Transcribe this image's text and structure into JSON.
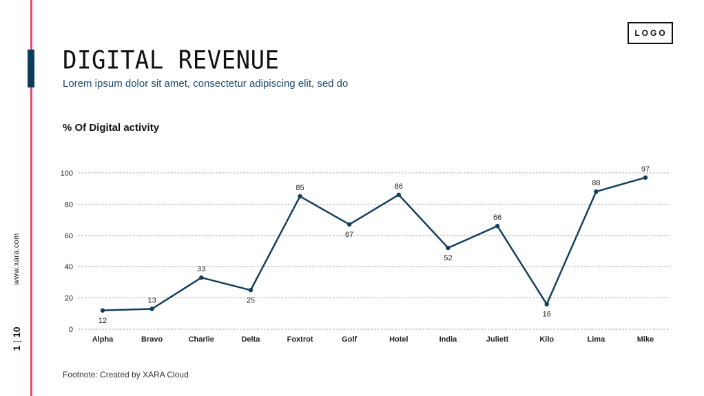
{
  "page": {
    "title": "DIGITAL REVENUE",
    "subtitle": "Lorem ipsum dolor sit amet, consectetur adipiscing elit, sed do",
    "logo": "LOGO",
    "side_url": "www.xara.com",
    "page_current": "1",
    "page_separator": "|",
    "page_total": "10",
    "footnote": "Footnote: Created by XARA Cloud"
  },
  "colors": {
    "accent": "#e8466e",
    "brand": "#0d3b5a",
    "line": "#123f5e",
    "grid": "#999999"
  },
  "chart_data": {
    "type": "line",
    "title": "% Of Digital activity",
    "xlabel": "",
    "ylabel": "",
    "categories": [
      "Alpha",
      "Bravo",
      "Charlie",
      "Delta",
      "Foxtrot",
      "Golf",
      "Hotel",
      "India",
      "Juliett",
      "Kilo",
      "Lima",
      "Mike"
    ],
    "series": [
      {
        "name": "% Of Digital activity",
        "values": [
          12,
          13,
          33,
          25,
          85,
          67,
          86,
          52,
          66,
          16,
          88,
          97
        ]
      }
    ],
    "ylim": [
      0,
      100
    ],
    "yticks": [
      0,
      20,
      40,
      60,
      80,
      100
    ],
    "grid": true,
    "legend": "none"
  }
}
